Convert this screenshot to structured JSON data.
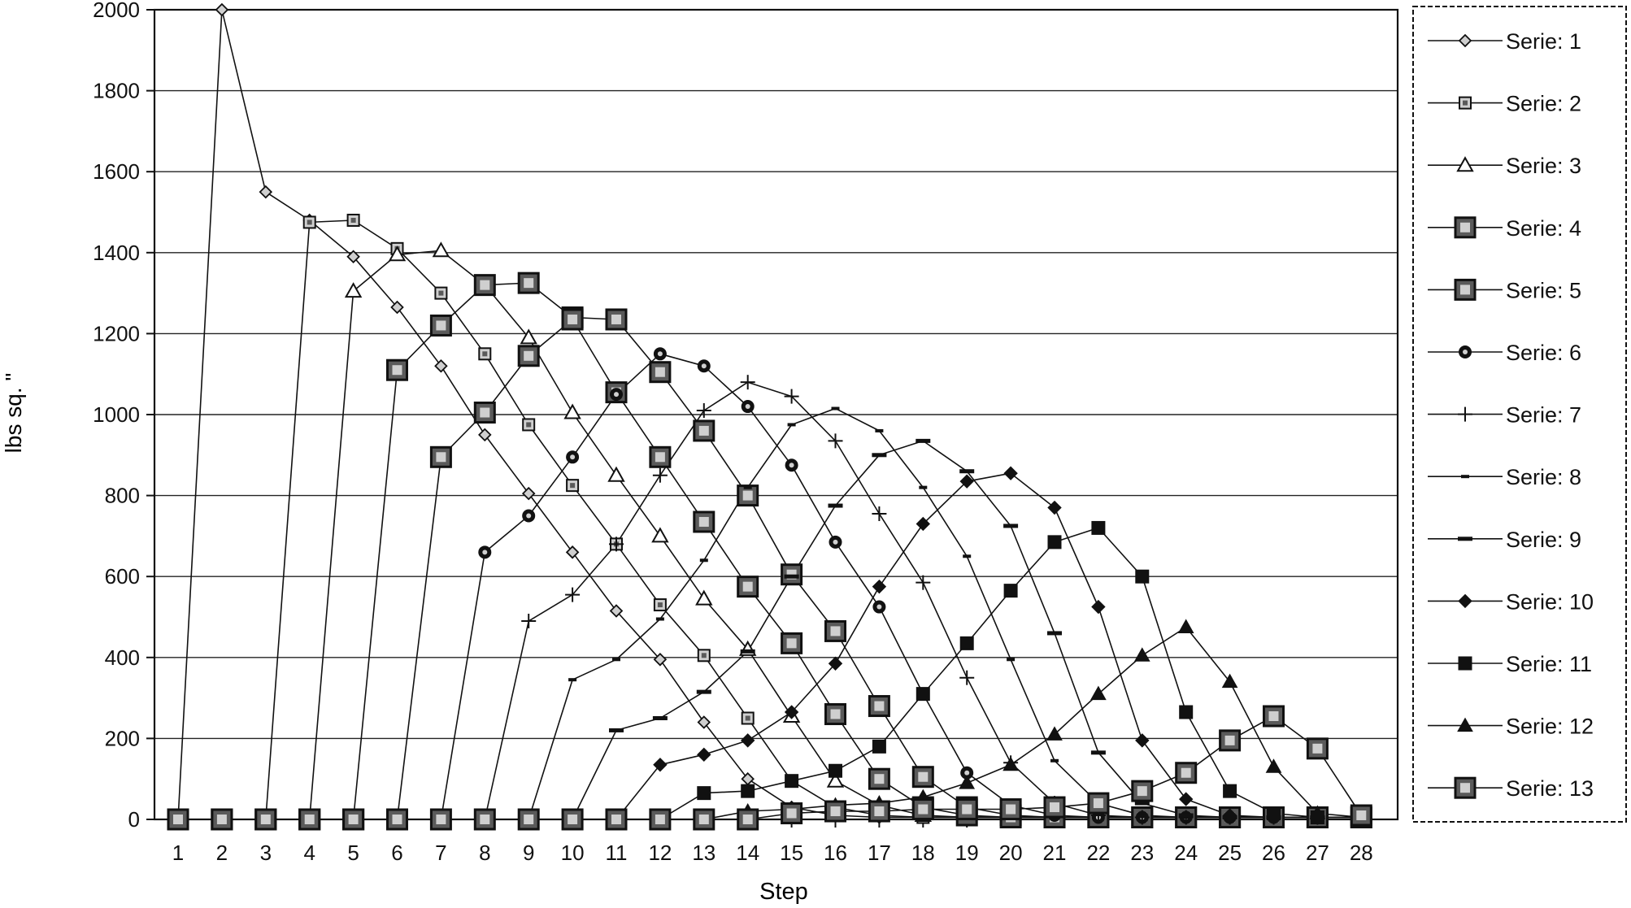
{
  "chart_data": {
    "type": "line",
    "title": "",
    "xlabel": "Step",
    "ylabel": "lbs sq. \"",
    "ylim": [
      0,
      2000
    ],
    "yticks": [
      0,
      200,
      400,
      600,
      800,
      1000,
      1200,
      1400,
      1600,
      1800,
      2000
    ],
    "x": [
      1,
      2,
      3,
      4,
      5,
      6,
      7,
      8,
      9,
      10,
      11,
      12,
      13,
      14,
      15,
      16,
      17,
      18,
      19,
      20,
      21,
      22,
      23,
      24,
      25,
      26,
      27,
      28
    ],
    "grid": "horizontal",
    "legend_position": "right",
    "series": [
      {
        "name": "Serie: 1",
        "marker": "diamond-open",
        "values": [
          0,
          2000,
          1550,
          1480,
          1390,
          1265,
          1120,
          950,
          805,
          660,
          515,
          395,
          240,
          100,
          30,
          10,
          5,
          5,
          5,
          5,
          5,
          5,
          5,
          5,
          5,
          5,
          5,
          5
        ]
      },
      {
        "name": "Serie: 2",
        "marker": "square-dot-small",
        "values": [
          0,
          0,
          0,
          1475,
          1480,
          1410,
          1300,
          1150,
          975,
          825,
          680,
          530,
          405,
          250,
          95,
          30,
          10,
          5,
          5,
          5,
          5,
          5,
          5,
          5,
          5,
          5,
          5,
          5
        ]
      },
      {
        "name": "Serie: 3",
        "marker": "triangle-open",
        "values": [
          0,
          0,
          0,
          0,
          1305,
          1395,
          1405,
          1320,
          1190,
          1005,
          850,
          700,
          545,
          420,
          255,
          95,
          35,
          10,
          5,
          5,
          5,
          5,
          5,
          5,
          5,
          5,
          5,
          5
        ]
      },
      {
        "name": "Serie: 4",
        "marker": "square-dot-large",
        "values": [
          0,
          0,
          0,
          0,
          0,
          1110,
          1220,
          1320,
          1325,
          1240,
          1235,
          1105,
          960,
          800,
          605,
          465,
          280,
          105,
          30,
          10,
          5,
          5,
          5,
          5,
          5,
          5,
          5,
          5
        ]
      },
      {
        "name": "Serie: 5",
        "marker": "square-dot-large",
        "values": [
          0,
          0,
          0,
          0,
          0,
          0,
          895,
          1005,
          1145,
          1235,
          1055,
          895,
          735,
          575,
          435,
          260,
          100,
          30,
          10,
          5,
          5,
          5,
          5,
          5,
          5,
          5,
          5,
          5
        ]
      },
      {
        "name": "Serie: 6",
        "marker": "circle-dot",
        "values": [
          0,
          0,
          0,
          0,
          0,
          0,
          0,
          660,
          750,
          895,
          1050,
          1150,
          1120,
          1020,
          875,
          685,
          525,
          310,
          115,
          35,
          10,
          5,
          5,
          5,
          5,
          5,
          5,
          5
        ]
      },
      {
        "name": "Serie: 7",
        "marker": "plus",
        "values": [
          0,
          0,
          0,
          0,
          0,
          0,
          0,
          0,
          490,
          555,
          680,
          850,
          1010,
          1080,
          1045,
          935,
          755,
          585,
          350,
          140,
          40,
          10,
          5,
          5,
          5,
          5,
          5,
          5
        ]
      },
      {
        "name": "Serie: 8",
        "marker": "dash-small",
        "values": [
          0,
          0,
          0,
          0,
          0,
          0,
          0,
          0,
          0,
          345,
          395,
          495,
          640,
          820,
          975,
          1015,
          960,
          820,
          650,
          395,
          145,
          40,
          10,
          5,
          5,
          5,
          5,
          5
        ]
      },
      {
        "name": "Serie: 9",
        "marker": "dash",
        "values": [
          0,
          0,
          0,
          0,
          0,
          0,
          0,
          0,
          0,
          0,
          220,
          250,
          315,
          415,
          600,
          775,
          900,
          935,
          860,
          725,
          460,
          165,
          40,
          10,
          5,
          5,
          5,
          5
        ]
      },
      {
        "name": "Serie: 10",
        "marker": "diamond-filled",
        "values": [
          0,
          0,
          0,
          0,
          0,
          0,
          0,
          0,
          0,
          0,
          0,
          135,
          160,
          195,
          265,
          385,
          575,
          730,
          835,
          855,
          770,
          525,
          195,
          50,
          10,
          5,
          5,
          5
        ]
      },
      {
        "name": "Serie: 11",
        "marker": "square-filled",
        "values": [
          0,
          0,
          0,
          0,
          0,
          0,
          0,
          0,
          0,
          0,
          0,
          0,
          65,
          70,
          95,
          120,
          180,
          310,
          435,
          565,
          685,
          720,
          600,
          265,
          70,
          15,
          5,
          5
        ]
      },
      {
        "name": "Serie: 12",
        "marker": "triangle-filled",
        "values": [
          0,
          0,
          0,
          0,
          0,
          0,
          0,
          0,
          0,
          0,
          0,
          0,
          0,
          20,
          25,
          35,
          40,
          55,
          90,
          135,
          210,
          310,
          405,
          475,
          340,
          130,
          15,
          5
        ]
      },
      {
        "name": "Serie: 13",
        "marker": "square-dot-large",
        "values": [
          0,
          0,
          0,
          0,
          0,
          0,
          0,
          0,
          0,
          0,
          0,
          0,
          0,
          0,
          15,
          20,
          20,
          25,
          25,
          25,
          30,
          40,
          70,
          115,
          195,
          255,
          175,
          10
        ]
      }
    ]
  },
  "colors": {
    "background": "#ffffff",
    "ink": "#111111",
    "grid": "#222222",
    "marker_fill_light": "#cfcfcf",
    "marker_fill_dark": "#5a5a5a"
  }
}
